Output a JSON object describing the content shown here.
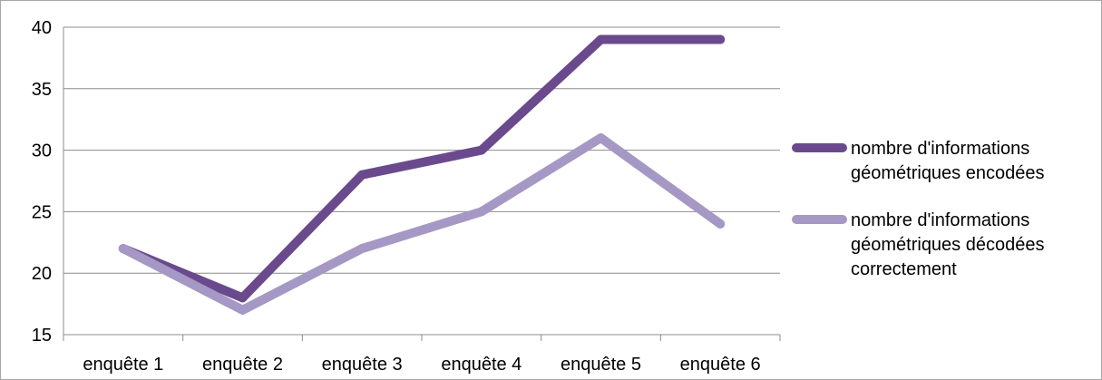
{
  "chart_data": {
    "type": "line",
    "categories": [
      "enquête 1",
      "enquête 2",
      "enquête 3",
      "enquête 4",
      "enquête 5",
      "enquête 6"
    ],
    "series": [
      {
        "name": "nombre d'informations géométriques encodées",
        "name_lines": [
          "nombre d'informations",
          "géométriques encodées"
        ],
        "values": [
          22,
          18,
          28,
          30,
          39,
          39
        ],
        "color": "#6a4a8c"
      },
      {
        "name": "nombre d'informations géométriques décodées correctement",
        "name_lines": [
          "nombre d'informations",
          "géométriques décodées",
          "correctement"
        ],
        "values": [
          22,
          17,
          22,
          25,
          31,
          24
        ],
        "color": "#a598c4"
      }
    ],
    "yticks": [
      "15",
      "20",
      "25",
      "30",
      "35",
      "40"
    ],
    "ylim": [
      15,
      40
    ],
    "grid": true,
    "legend": "right"
  }
}
